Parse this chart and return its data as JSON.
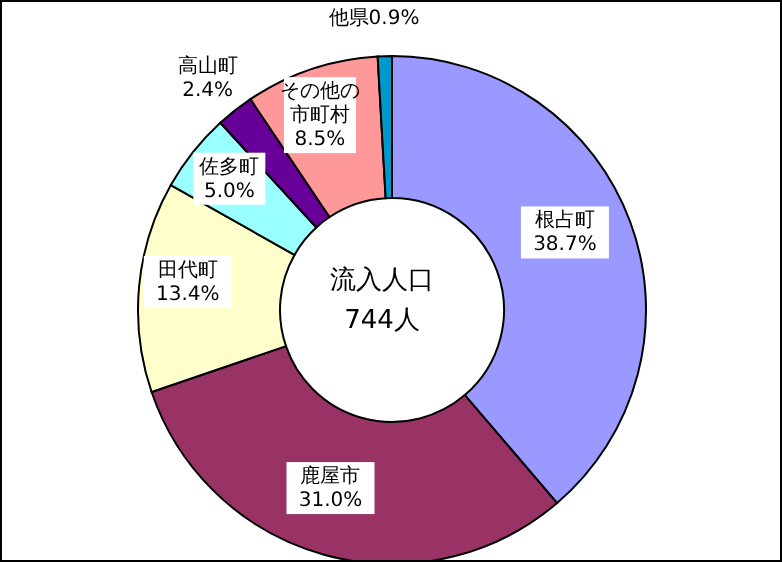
{
  "chart_data": {
    "type": "donut",
    "title": "流入人口",
    "subtitle": "744人",
    "categories": [
      "根占町",
      "鹿屋市",
      "田代町",
      "佐多町",
      "高山町",
      "その他の市町村",
      "他県"
    ],
    "values": [
      38.7,
      31.0,
      13.4,
      5.0,
      2.4,
      8.5,
      0.9
    ],
    "colors": [
      "#9999ff",
      "#993366",
      "#ffffcc",
      "#99ffff",
      "#660099",
      "#ff9999",
      "#0099cc"
    ],
    "value_labels": [
      "38.7%",
      "31.0%",
      "13.4%",
      "5.0%",
      "2.4%",
      "8.5%",
      "0.9%"
    ],
    "legend": false
  }
}
